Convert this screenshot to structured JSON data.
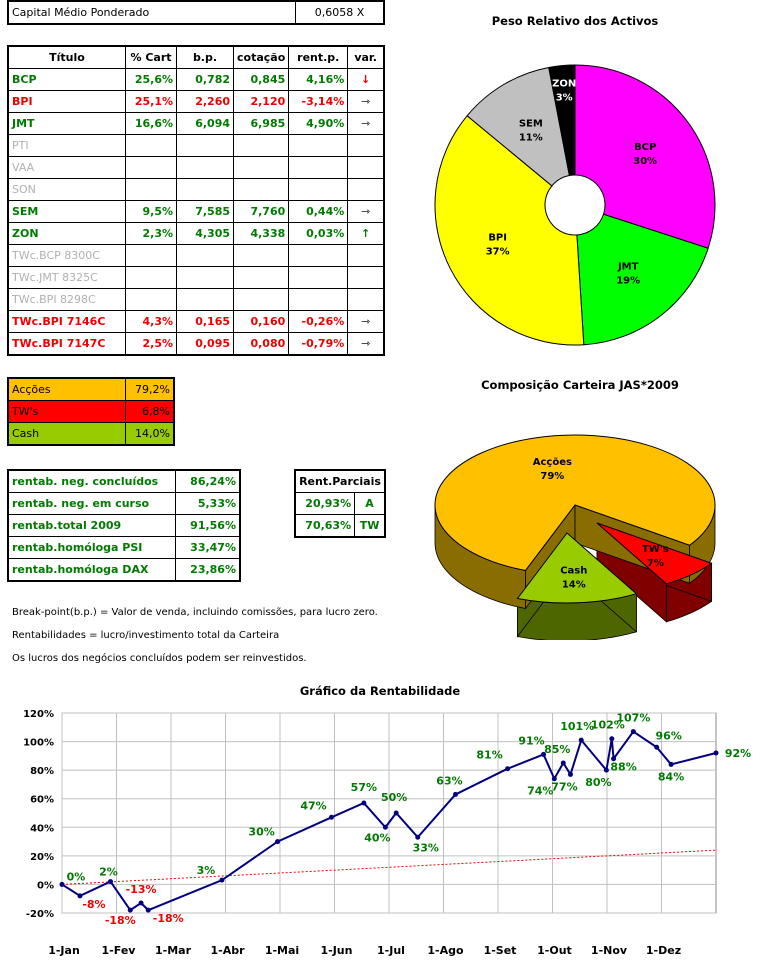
{
  "capital": {
    "label": "Capital Médio Ponderado",
    "value": "0,6058 X"
  },
  "main_table": {
    "headers": [
      "Título",
      "% Cart",
      "b.p.",
      "cotação",
      "rent.p.",
      "var."
    ],
    "rows": [
      {
        "title": "BCP",
        "pct": "25,6%",
        "bp": "0,782",
        "cot": "0,845",
        "rent": "4,16%",
        "var": "down",
        "style": "g"
      },
      {
        "title": "BPI",
        "pct": "25,1%",
        "bp": "2,260",
        "cot": "2,120",
        "rent": "-3,14%",
        "var": "right",
        "style": "r"
      },
      {
        "title": "JMT",
        "pct": "16,6%",
        "bp": "6,094",
        "cot": "6,985",
        "rent": "4,90%",
        "var": "right",
        "style": "g"
      },
      {
        "title": "PTI",
        "pct": "",
        "bp": "",
        "cot": "",
        "rent": "",
        "var": "",
        "style": "gray"
      },
      {
        "title": "VAA",
        "pct": "",
        "bp": "",
        "cot": "",
        "rent": "",
        "var": "",
        "style": "gray"
      },
      {
        "title": "SON",
        "pct": "",
        "bp": "",
        "cot": "",
        "rent": "",
        "var": "",
        "style": "gray"
      },
      {
        "title": "SEM",
        "pct": "9,5%",
        "bp": "7,585",
        "cot": "7,760",
        "rent": "0,44%",
        "var": "right",
        "style": "g"
      },
      {
        "title": "ZON",
        "pct": "2,3%",
        "bp": "4,305",
        "cot": "4,338",
        "rent": "0,03%",
        "var": "up",
        "style": "g"
      },
      {
        "title": "TWc.BCP 8300C",
        "pct": "",
        "bp": "",
        "cot": "",
        "rent": "",
        "var": "",
        "style": "gray"
      },
      {
        "title": "TWc.JMT 8325C",
        "pct": "",
        "bp": "",
        "cot": "",
        "rent": "",
        "var": "",
        "style": "gray"
      },
      {
        "title": "TWc.BPI 8298C",
        "pct": "",
        "bp": "",
        "cot": "",
        "rent": "",
        "var": "",
        "style": "gray"
      },
      {
        "title": "TWc.BPI 7146C",
        "pct": "4,3%",
        "bp": "0,165",
        "cot": "0,160",
        "rent": "-0,26%",
        "var": "right",
        "style": "r"
      },
      {
        "title": "TWc.BPI 7147C",
        "pct": "2,5%",
        "bp": "0,095",
        "cot": "0,080",
        "rent": "-0,79%",
        "var": "right",
        "style": "r"
      }
    ]
  },
  "composition_table": [
    {
      "label": "Acções",
      "value": "79,2%",
      "color": "#ffc000"
    },
    {
      "label": "TW's",
      "value": "6,8%",
      "color": "#ff0000"
    },
    {
      "label": "Cash",
      "value": "14,0%",
      "color": "#99cc00"
    }
  ],
  "rent_table": [
    {
      "label": "rentab. neg. concluídos",
      "value": "86,24%"
    },
    {
      "label": "rentab. neg. em curso",
      "value": "5,33%"
    },
    {
      "label": "rentab.total 2009",
      "value": "91,56%"
    },
    {
      "label": "rentab.homóloga PSI",
      "value": "33,47%"
    },
    {
      "label": "rentab.homóloga DAX",
      "value": "23,86%"
    }
  ],
  "parciais": {
    "header": "Rent.Parciais",
    "rows": [
      {
        "value": "20,93%",
        "tag": "A"
      },
      {
        "value": "70,63%",
        "tag": "TW"
      }
    ]
  },
  "notes": [
    "Break-point(b.p.) = Valor de venda, incluindo comissões, para lucro zero.",
    "Rentabilidades = lucro/investimento total da Carteira",
    "Os lucros dos negócios concluídos podem ser reinvestidos."
  ],
  "chart_data": [
    {
      "type": "pie",
      "title": "Peso Relativo dos Activos",
      "donut": true,
      "slices": [
        {
          "label": "BCP",
          "value": 30,
          "display": "30%",
          "color": "#ff00ff"
        },
        {
          "label": "JMT",
          "value": 19,
          "display": "19%",
          "color": "#00ff00"
        },
        {
          "label": "BPI",
          "value": 37,
          "display": "37%",
          "color": "#ffff00"
        },
        {
          "label": "SEM",
          "value": 11,
          "display": "11%",
          "color": "#c0c0c0"
        },
        {
          "label": "ZON",
          "value": 3,
          "display": "3%",
          "color": "#000000"
        }
      ]
    },
    {
      "type": "pie",
      "title": "Composição Carteira JAS*2009",
      "three_d": true,
      "slices": [
        {
          "label": "Acções",
          "value": 79,
          "display": "79%",
          "color": "#ffc000"
        },
        {
          "label": "TW's",
          "value": 7,
          "display": "7%",
          "color": "#ff0000"
        },
        {
          "label": "Cash",
          "value": 14,
          "display": "14%",
          "color": "#99cc00"
        }
      ]
    },
    {
      "type": "line",
      "title": "Gráfico da Rentabilidade",
      "ylim": [
        -20,
        120
      ],
      "yticks": [
        "-20%",
        "0%",
        "20%",
        "40%",
        "60%",
        "80%",
        "100%",
        "120%"
      ],
      "xticks": [
        "1-Jan",
        "1-Fev",
        "1-Mar",
        "1-Abr",
        "1-Mai",
        "1-Jun",
        "1-Jul",
        "1-Ago",
        "1-Set",
        "1-Out",
        "1-Nov",
        "1-Dez"
      ],
      "grid": true,
      "series_color": "#000080",
      "points": [
        {
          "x": "2009-01-01",
          "y": 0,
          "label": "0%",
          "neg": false
        },
        {
          "x": "2009-01-11",
          "y": -8,
          "label": "-8%",
          "neg": true
        },
        {
          "x": "2009-01-28",
          "y": 2,
          "label": "2%",
          "neg": false
        },
        {
          "x": "2009-02-08",
          "y": -18,
          "label": "-18%",
          "neg": true
        },
        {
          "x": "2009-02-14",
          "y": -13,
          "label": "-13%",
          "neg": true
        },
        {
          "x": "2009-02-18",
          "y": -18,
          "label": "-18%",
          "neg": true
        },
        {
          "x": "2009-03-31",
          "y": 3,
          "label": "3%",
          "neg": false
        },
        {
          "x": "2009-05-01",
          "y": 30,
          "label": "30%",
          "neg": false
        },
        {
          "x": "2009-05-31",
          "y": 47,
          "label": "47%",
          "neg": false
        },
        {
          "x": "2009-06-18",
          "y": 57,
          "label": "57%",
          "neg": false
        },
        {
          "x": "2009-06-30",
          "y": 40,
          "label": "40%",
          "neg": false
        },
        {
          "x": "2009-07-06",
          "y": 50,
          "label": "50%",
          "neg": false
        },
        {
          "x": "2009-07-18",
          "y": 33,
          "label": "33%",
          "neg": false
        },
        {
          "x": "2009-08-08",
          "y": 63,
          "label": "63%",
          "neg": false
        },
        {
          "x": "2009-09-06",
          "y": 81,
          "label": "81%",
          "neg": false
        },
        {
          "x": "2009-09-26",
          "y": 91,
          "label": "91%",
          "neg": false
        },
        {
          "x": "2009-10-02",
          "y": 74,
          "label": "74%",
          "neg": false
        },
        {
          "x": "2009-10-07",
          "y": 85,
          "label": "85%",
          "neg": false
        },
        {
          "x": "2009-10-11",
          "y": 77,
          "label": "77%",
          "neg": false
        },
        {
          "x": "2009-10-17",
          "y": 101,
          "label": "101%",
          "neg": false
        },
        {
          "x": "2009-10-31",
          "y": 80,
          "label": "80%",
          "neg": false
        },
        {
          "x": "2009-11-03",
          "y": 102,
          "label": "102%",
          "neg": false
        },
        {
          "x": "2009-11-04",
          "y": 88,
          "label": "88%",
          "neg": false
        },
        {
          "x": "2009-11-15",
          "y": 107,
          "label": "107%",
          "neg": false
        },
        {
          "x": "2009-11-28",
          "y": 96,
          "label": "96%",
          "neg": false
        },
        {
          "x": "2009-12-06",
          "y": 84,
          "label": "84%",
          "neg": false
        },
        {
          "x": "2009-12-31",
          "y": 92,
          "label": "92%",
          "neg": false
        }
      ],
      "trend": {
        "color": "#ee0000",
        "from": 0,
        "to": 24
      }
    }
  ]
}
